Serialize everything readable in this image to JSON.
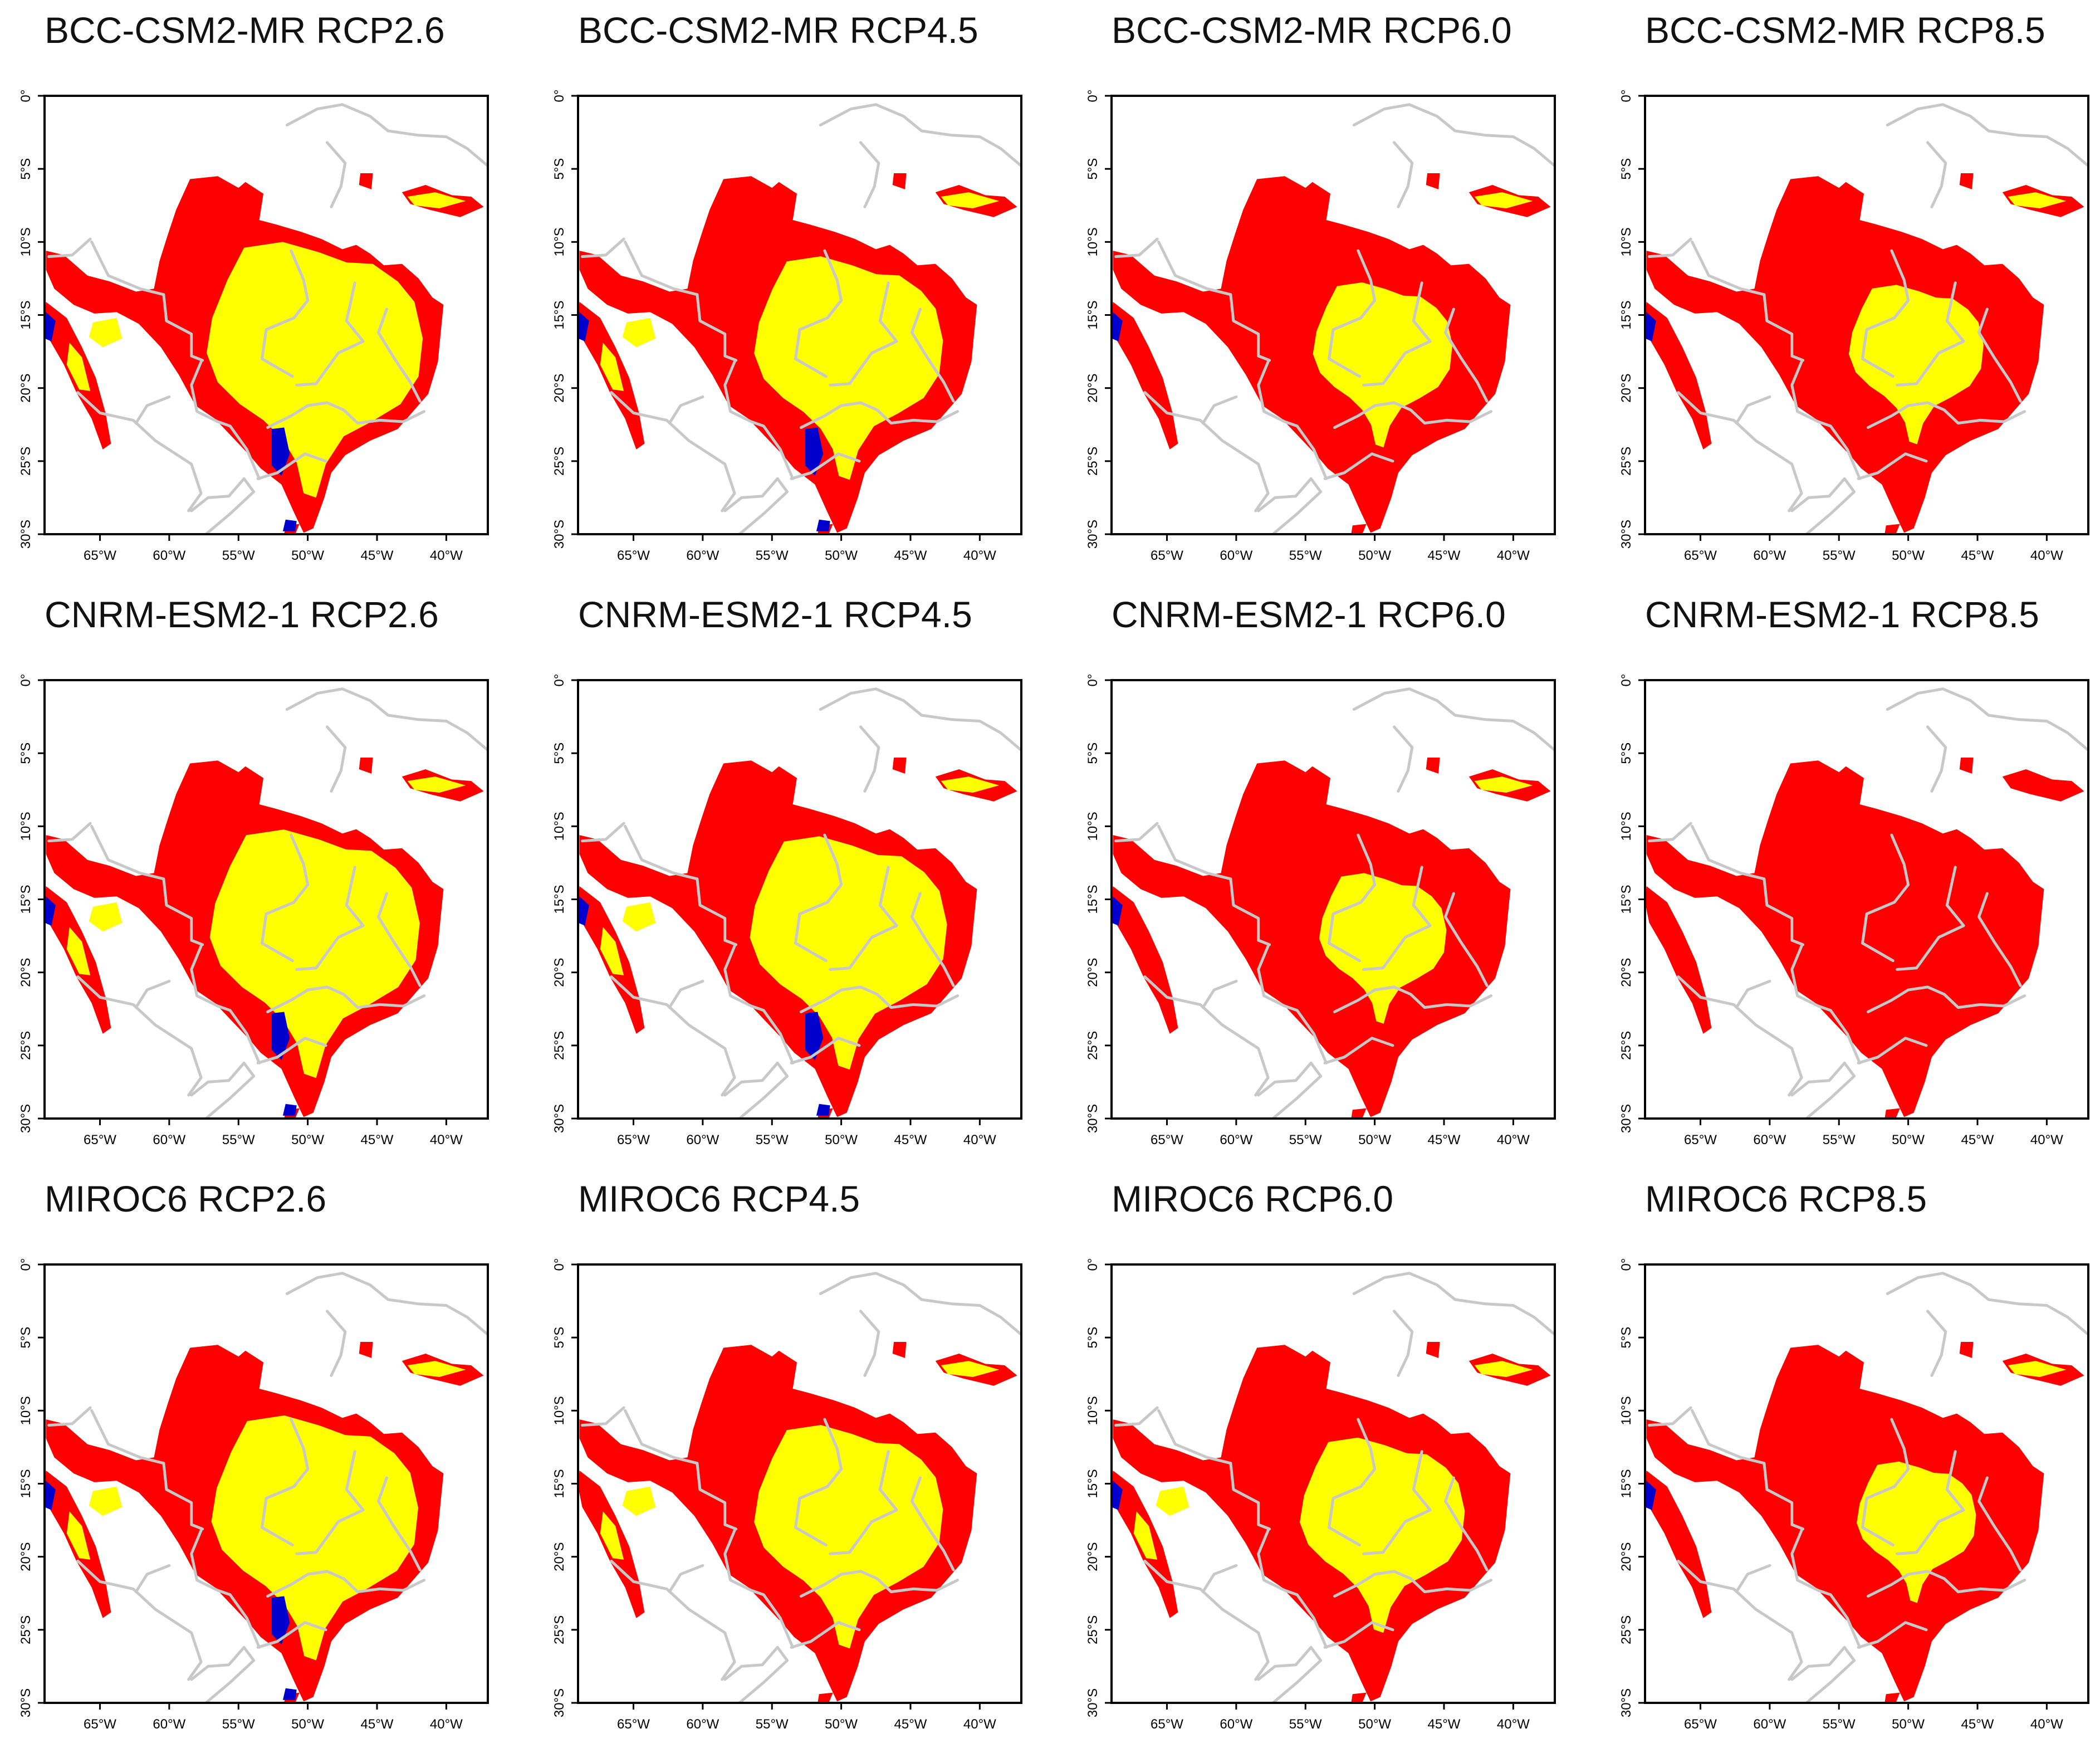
{
  "colors": {
    "background": "#ffffff",
    "frame": "#000000",
    "borders": "#c8c8c8",
    "red_class": "#ff0000",
    "yellow_class": "#ffff00",
    "blue_class": "#0000cc"
  },
  "axes": {
    "x_ticks": [
      "65°W",
      "60°W",
      "55°W",
      "50°W",
      "45°W",
      "40°W"
    ],
    "y_ticks": [
      "0°",
      "5°S",
      "10°S",
      "15°S",
      "20°S",
      "25°S",
      "30°S"
    ]
  },
  "panels": [
    {
      "title": "BCC-CSM2-MR RCP2.6",
      "model": "BCC-CSM2-MR",
      "scenario": "RCP2.6",
      "yellow_share": 0.72,
      "has_blue": true
    },
    {
      "title": "BCC-CSM2-MR RCP4.5",
      "model": "BCC-CSM2-MR",
      "scenario": "RCP4.5",
      "yellow_share": 0.55,
      "has_blue": true
    },
    {
      "title": "BCC-CSM2-MR RCP6.0",
      "model": "BCC-CSM2-MR",
      "scenario": "RCP6.0",
      "yellow_share": 0.3,
      "has_blue": true
    },
    {
      "title": "BCC-CSM2-MR RCP8.5",
      "model": "BCC-CSM2-MR",
      "scenario": "RCP8.5",
      "yellow_share": 0.28,
      "has_blue": true
    },
    {
      "title": "CNRM-ESM2-1 RCP2.6",
      "model": "CNRM-ESM2-1",
      "scenario": "RCP2.6",
      "yellow_share": 0.68,
      "has_blue": true
    },
    {
      "title": "CNRM-ESM2-1 RCP4.5",
      "model": "CNRM-ESM2-1",
      "scenario": "RCP4.5",
      "yellow_share": 0.6,
      "has_blue": true
    },
    {
      "title": "CNRM-ESM2-1 RCP6.0",
      "model": "CNRM-ESM2-1",
      "scenario": "RCP6.0",
      "yellow_share": 0.25,
      "has_blue": true
    },
    {
      "title": "CNRM-ESM2-1 RCP8.5",
      "model": "CNRM-ESM2-1",
      "scenario": "RCP8.5",
      "yellow_share": 0.0,
      "has_blue": false
    },
    {
      "title": "MIROC6 RCP2.6",
      "model": "MIROC6",
      "scenario": "RCP2.6",
      "yellow_share": 0.66,
      "has_blue": true
    },
    {
      "title": "MIROC6 RCP4.5",
      "model": "MIROC6",
      "scenario": "RCP4.5",
      "yellow_share": 0.55,
      "has_blue": false
    },
    {
      "title": "MIROC6 RCP6.0",
      "model": "MIROC6",
      "scenario": "RCP6.0",
      "yellow_share": 0.42,
      "has_blue": true
    },
    {
      "title": "MIROC6 RCP8.5",
      "model": "MIROC6",
      "scenario": "RCP8.5",
      "yellow_share": 0.22,
      "has_blue": true
    }
  ]
}
